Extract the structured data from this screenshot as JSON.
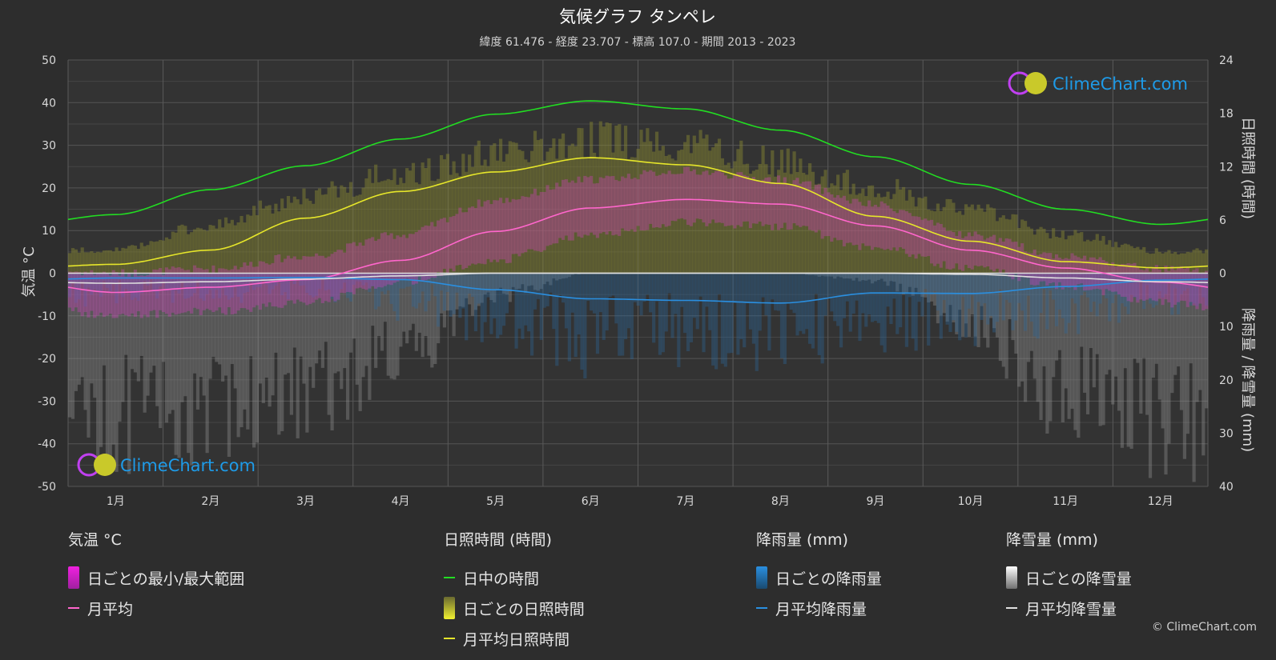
{
  "header": {
    "title": "気候グラフ タンペレ",
    "subtitle": "緯度 61.476 - 経度 23.707 - 標高 107.0 - 期間 2013 - 2023"
  },
  "chart_data": {
    "type": "line",
    "title": "気候グラフ タンペレ",
    "categories": [
      "1月",
      "2月",
      "3月",
      "4月",
      "5月",
      "6月",
      "7月",
      "8月",
      "9月",
      "10月",
      "11月",
      "12月"
    ],
    "axes": {
      "left": {
        "label": "気温 °C",
        "ticks": [
          "50",
          "40",
          "30",
          "20",
          "10",
          "0",
          "-10",
          "-20",
          "-30",
          "-40",
          "-50"
        ],
        "ylim": [
          -50,
          50
        ]
      },
      "right_top": {
        "label": "日照時間 (時間)",
        "ticks": [
          "24",
          "18",
          "12",
          "6",
          "0"
        ],
        "ylim": [
          0,
          24
        ]
      },
      "right_bottom": {
        "label": "降雨量 / 降雪量 (mm)",
        "ticks": [
          "0",
          "10",
          "20",
          "30",
          "40"
        ],
        "ylim": [
          0,
          40
        ]
      }
    },
    "grid": true,
    "series": [
      {
        "name": "日中の時間",
        "unit": "hours",
        "color": "#22dd22",
        "values": [
          6.6,
          9.4,
          12.1,
          15.1,
          17.9,
          19.4,
          18.5,
          16.1,
          13.1,
          10.0,
          7.2,
          5.5
        ]
      },
      {
        "name": "月平均日照時間",
        "unit": "hours",
        "color": "#e6e62a",
        "values": [
          1.0,
          2.6,
          6.2,
          9.2,
          11.4,
          13.0,
          12.2,
          10.1,
          6.4,
          3.6,
          1.3,
          0.6
        ]
      },
      {
        "name": "月平均",
        "unit": "°C",
        "color": "#ff66cc",
        "values": [
          -4.5,
          -3.3,
          -1.5,
          3.0,
          9.8,
          15.3,
          17.3,
          16.2,
          11.1,
          5.4,
          1.2,
          -2.1
        ]
      },
      {
        "name": "月平均降雨量",
        "unit": "mm",
        "color": "#2a8fe0",
        "values": [
          0.9,
          0.9,
          0.8,
          1.2,
          3.1,
          4.8,
          5.1,
          5.6,
          3.7,
          3.8,
          2.5,
          1.3
        ]
      },
      {
        "name": "月平均降雪量",
        "unit": "mm",
        "color": "#e0e0e0",
        "values": [
          1.9,
          1.6,
          1.1,
          0.5,
          0.0,
          0.0,
          0.0,
          0.0,
          0.0,
          0.2,
          0.9,
          1.6
        ]
      }
    ],
    "daily_temp_range": {
      "min": [
        -9,
        -8,
        -6,
        -1,
        4,
        10,
        13,
        12,
        7,
        2,
        -2,
        -6
      ],
      "max": [
        -1,
        0,
        3,
        8,
        16,
        21,
        23,
        21,
        15,
        8,
        3,
        0
      ]
    },
    "daily_sunshine_envelope": [
      3.0,
      6.2,
      10.0,
      12.8,
      15.4,
      17.2,
      16.8,
      14.2,
      11.0,
      8.2,
      5.0,
      2.8
    ],
    "daily_rain_max": [
      6,
      6,
      5,
      9,
      14,
      20,
      18,
      20,
      15,
      14,
      12,
      8
    ],
    "daily_snow_max": [
      38,
      36,
      32,
      22,
      6,
      0,
      0,
      0,
      2,
      14,
      32,
      40
    ]
  },
  "legend": {
    "temperature": {
      "head": "気温 °C",
      "items": [
        "日ごとの最小/最大範囲",
        "月平均"
      ]
    },
    "sunshine": {
      "head": "日照時間 (時間)",
      "items": [
        "日中の時間",
        "日ごとの日照時間",
        "月平均日照時間"
      ]
    },
    "rain": {
      "head": "降雨量 (mm)",
      "items": [
        "日ごとの降雨量",
        "月平均降雨量"
      ]
    },
    "snow": {
      "head": "降雪量 (mm)",
      "items": [
        "日ごとの降雪量",
        "月平均降雪量"
      ]
    }
  },
  "logo": {
    "text": "ClimeChart.com"
  },
  "copyright": "© ClimeChart.com",
  "colors": {
    "background": "#2d2d2d",
    "daylight": "#22dd22",
    "sunshine": "#e6e62a",
    "temp_avg": "#ff66cc",
    "temp_range": "#d63fc4",
    "rain": "#2a8fe0",
    "snow": "#e0e0e0"
  }
}
